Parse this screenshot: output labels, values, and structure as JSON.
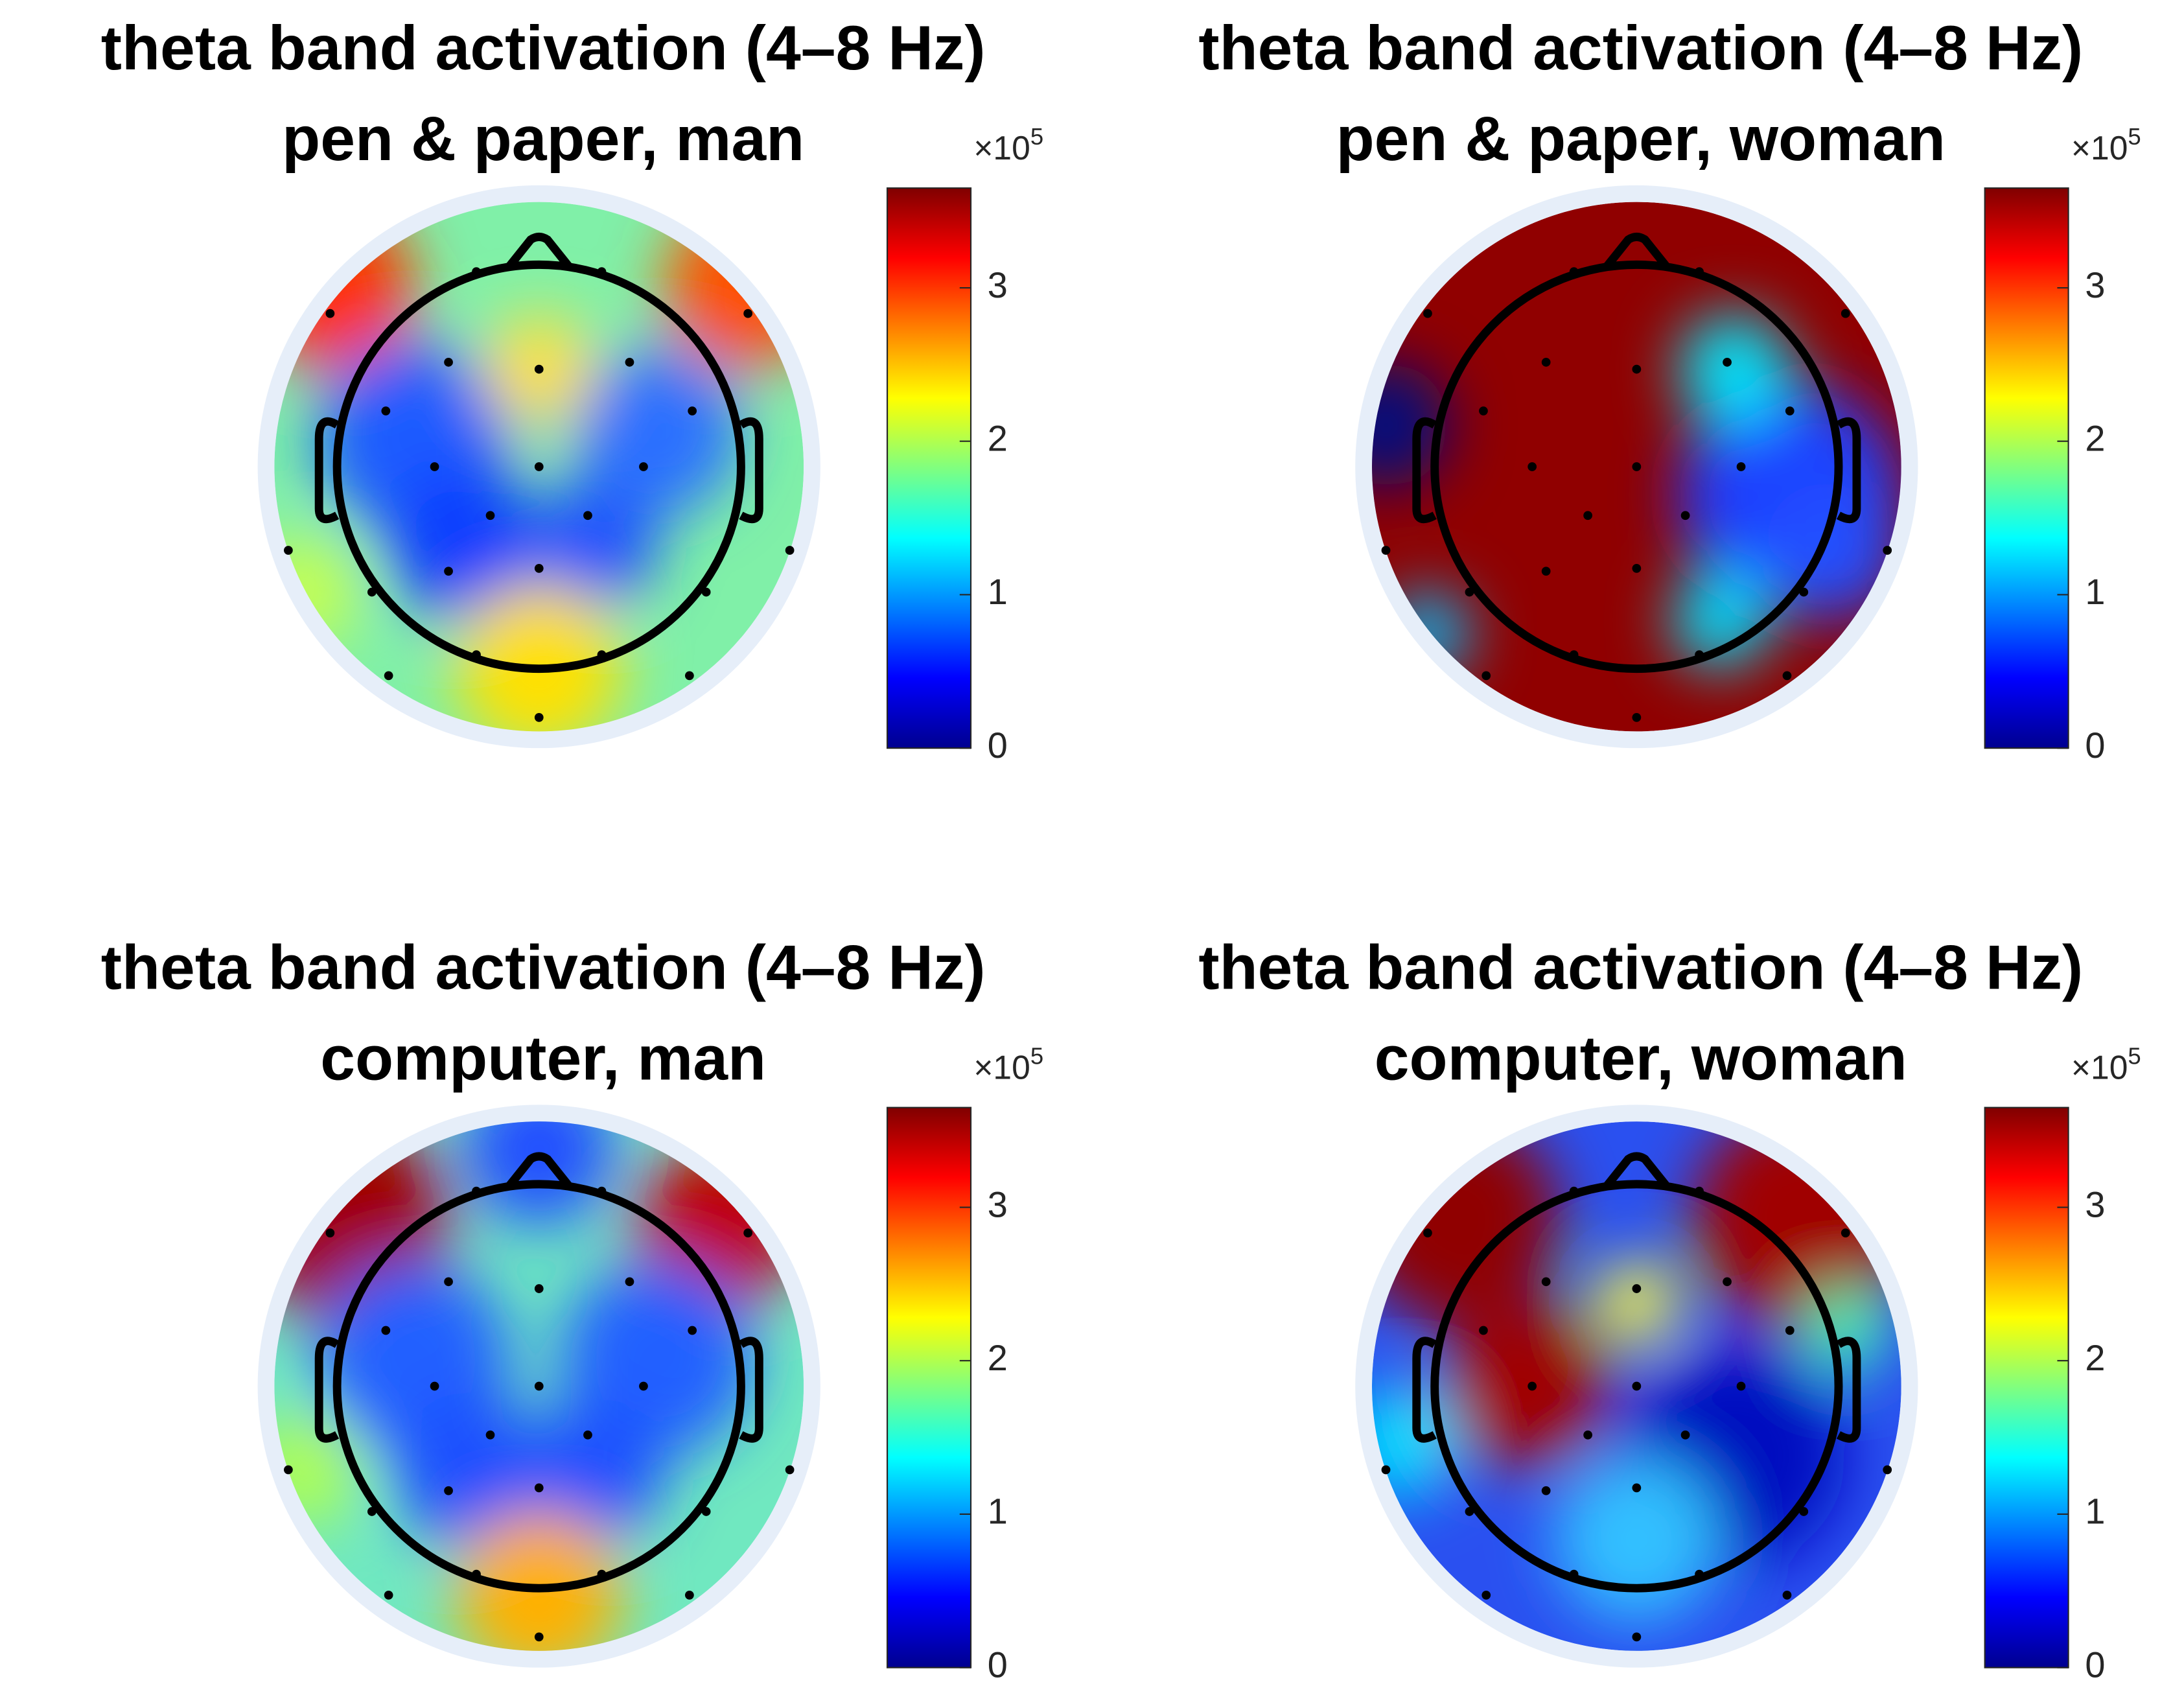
{
  "panels": [
    {
      "title": [
        "theta band activation (4–8 Hz)",
        "pen & paper, man"
      ],
      "colorbar": {
        "lim": [
          0,
          3.65
        ],
        "ticks": [
          0,
          1,
          2,
          3
        ],
        "multiplier": "×10",
        "exponent": "5"
      }
    },
    {
      "title": [
        "theta band activation (4–8 Hz)",
        "pen & paper, woman"
      ],
      "colorbar": {
        "lim": [
          0,
          3.65
        ],
        "ticks": [
          0,
          1,
          2,
          3
        ],
        "multiplier": "×10",
        "exponent": "5"
      }
    },
    {
      "title": [
        "theta band activation (4–8 Hz)",
        "computer, man"
      ],
      "colorbar": {
        "lim": [
          0,
          3.65
        ],
        "ticks": [
          0,
          1,
          2,
          3
        ],
        "multiplier": "×10",
        "exponent": "5"
      }
    },
    {
      "title": [
        "theta band activation (4–8 Hz)",
        "computer, woman"
      ],
      "colorbar": {
        "lim": [
          0,
          3.65
        ],
        "ticks": [
          0,
          1,
          2,
          3
        ],
        "multiplier": "×10",
        "exponent": "5"
      }
    }
  ]
}
